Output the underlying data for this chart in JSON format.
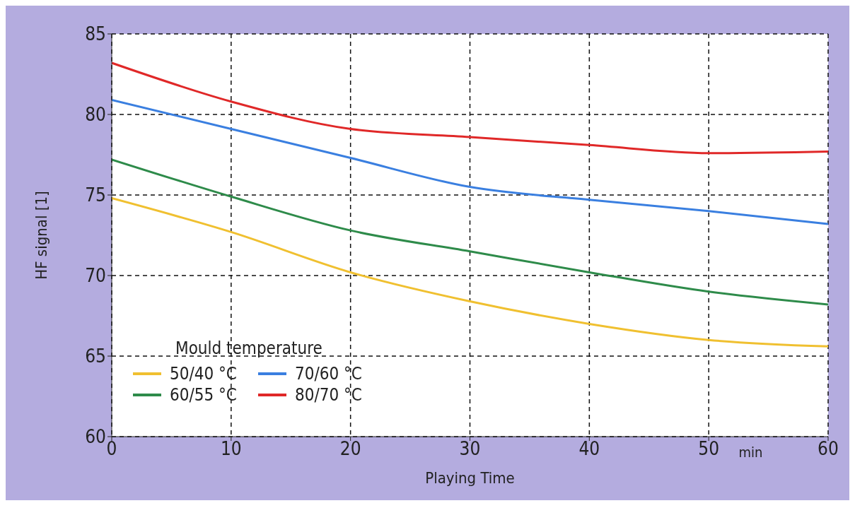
{
  "chart_data": {
    "type": "line",
    "xlabel": "Playing Time",
    "ylabel": "HF signal [1]",
    "legend_title": "Mould temperature",
    "annotations": [
      "min"
    ],
    "x": [
      0,
      10,
      20,
      30,
      40,
      50,
      60
    ],
    "series": [
      {
        "name": "50/40 °C",
        "color": "#f0c030",
        "values": [
          74.8,
          72.7,
          70.2,
          68.4,
          67.0,
          66.0,
          65.6
        ]
      },
      {
        "name": "60/55 °C",
        "color": "#2e8b4a",
        "values": [
          77.2,
          74.9,
          72.8,
          71.5,
          70.2,
          69.0,
          68.2
        ]
      },
      {
        "name": "70/60 °C",
        "color": "#3a7fe0",
        "values": [
          80.9,
          79.1,
          77.3,
          75.5,
          74.7,
          74.0,
          73.2
        ]
      },
      {
        "name": "80/70 °C",
        "color": "#e02828",
        "values": [
          83.2,
          80.8,
          79.1,
          78.6,
          78.1,
          77.6,
          77.7
        ]
      }
    ],
    "xlim": [
      0,
      60
    ],
    "xticks": [
      0,
      10,
      20,
      30,
      40,
      50,
      60
    ],
    "ylim": [
      60,
      85
    ],
    "yticks": [
      60,
      65,
      70,
      75,
      80,
      85
    ],
    "grid": true,
    "legend": "bottom left",
    "marker": "none",
    "line_style": "solid"
  }
}
